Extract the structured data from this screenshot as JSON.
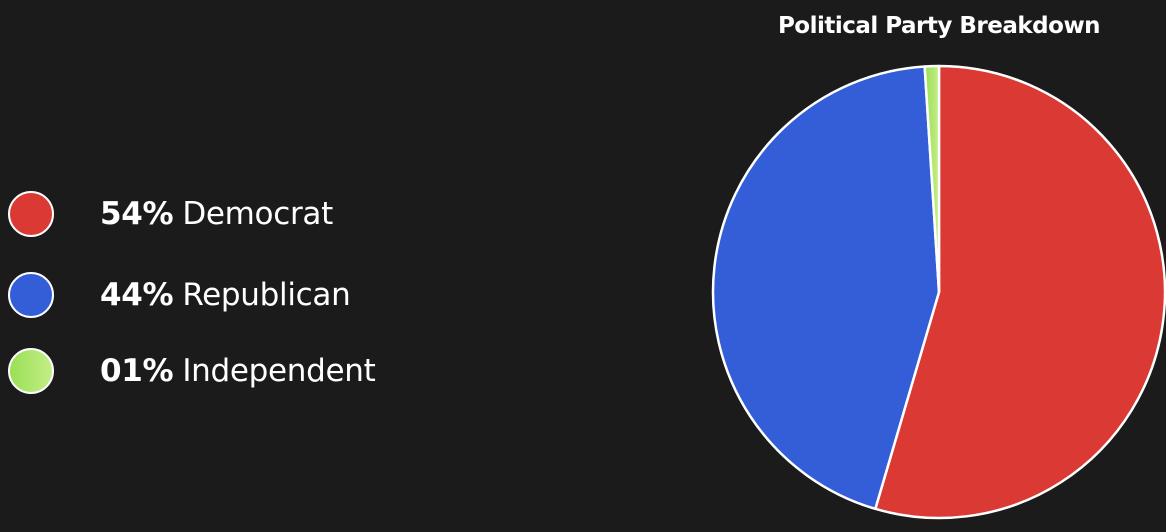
{
  "chart_data": {
    "type": "pie",
    "title": "Political Party Breakdown",
    "legend_position": "left",
    "slices": [
      {
        "label": "Democrat",
        "percent_label": "54%",
        "value": 54,
        "color": "#db3a34",
        "color_end": "#db3a34"
      },
      {
        "label": "Republican",
        "percent_label": "44%",
        "value": 44,
        "color": "#335ed8",
        "color_end": "#335ed8"
      },
      {
        "label": "Independent",
        "percent_label": "01%",
        "value": 1,
        "color": "#9adf55",
        "color_end": "#c4ee87"
      }
    ],
    "slice_border_color": "#ffffff"
  }
}
